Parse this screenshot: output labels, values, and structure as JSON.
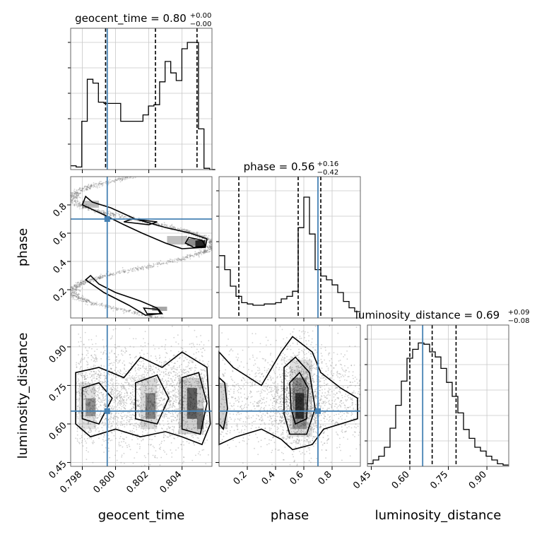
{
  "truth_color": "#4682b4",
  "chart_data": {
    "type": "corner",
    "parameters": [
      "geocent_time",
      "phase",
      "luminosity_distance"
    ],
    "ranges": {
      "geocent_time": [
        0.7973,
        0.8058
      ],
      "phase": [
        0.0,
        1.0
      ],
      "luminosity_distance": [
        0.435,
        0.985
      ]
    },
    "truths": {
      "geocent_time": 0.7995,
      "phase": 0.7,
      "luminosity_distance": 0.65
    },
    "grid": true,
    "panels": [
      {
        "id": "hist-geocent_time",
        "type": "histogram",
        "param": "geocent_time",
        "title": {
          "name": "geocent_time",
          "value": "0.80",
          "plus": "+0.00",
          "minus": "−0.00"
        },
        "quantiles": [
          0.7994,
          0.8024,
          0.8049
        ],
        "bin_edges": [
          0.7973,
          0.79763,
          0.79797,
          0.7983,
          0.79864,
          0.79897,
          0.79931,
          0.79964,
          0.79997,
          0.80031,
          0.80064,
          0.80098,
          0.80131,
          0.80165,
          0.80198,
          0.80231,
          0.80265,
          0.80298,
          0.80332,
          0.80365,
          0.80399,
          0.80432,
          0.80465,
          0.80499,
          0.80532,
          0.80566,
          0.806
        ],
        "counts": [
          0.03,
          0.02,
          0.38,
          0.71,
          0.68,
          0.53,
          0.52,
          0.52,
          0.52,
          0.38,
          0.38,
          0.38,
          0.38,
          0.43,
          0.5,
          0.51,
          0.69,
          0.85,
          0.76,
          0.7,
          0.95,
          1.0,
          1.0,
          0.32,
          0.01,
          0.0
        ],
        "yticks": [
          0.0,
          0.2,
          0.4,
          0.6,
          0.8,
          1.0
        ]
      },
      {
        "id": "hist-phase",
        "type": "histogram",
        "param": "phase",
        "title": {
          "name": "phase",
          "value": "0.56",
          "plus": "+0.16",
          "minus": "−0.42"
        },
        "quantiles": [
          0.14,
          0.56,
          0.72
        ],
        "bin_edges": [
          0.0,
          0.04,
          0.08,
          0.12,
          0.16,
          0.2,
          0.24,
          0.28,
          0.32,
          0.36,
          0.4,
          0.44,
          0.48,
          0.52,
          0.56,
          0.6,
          0.64,
          0.68,
          0.72,
          0.76,
          0.8,
          0.84,
          0.88,
          0.92,
          0.96,
          1.0
        ],
        "counts": [
          0.49,
          0.38,
          0.25,
          0.17,
          0.12,
          0.11,
          0.1,
          0.1,
          0.11,
          0.11,
          0.12,
          0.15,
          0.17,
          0.21,
          0.71,
          0.95,
          0.66,
          0.38,
          0.33,
          0.3,
          0.26,
          0.2,
          0.13,
          0.08,
          0.05
        ],
        "yticks": [
          0.0,
          0.2,
          0.4,
          0.6,
          0.8,
          1.0
        ]
      },
      {
        "id": "hist-luminosity_distance",
        "type": "histogram",
        "param": "luminosity_distance",
        "title": {
          "name": "luminosity_distance",
          "value": "0.69",
          "plus": "+0.09",
          "minus": "−0.08"
        },
        "quantiles": [
          0.6,
          0.687,
          0.78
        ],
        "bin_edges": [
          0.435,
          0.457,
          0.479,
          0.501,
          0.523,
          0.545,
          0.567,
          0.589,
          0.611,
          0.633,
          0.655,
          0.677,
          0.699,
          0.721,
          0.743,
          0.765,
          0.787,
          0.809,
          0.831,
          0.853,
          0.875,
          0.897,
          0.919,
          0.941,
          0.963,
          0.985
        ],
        "counts": [
          0.02,
          0.05,
          0.08,
          0.15,
          0.3,
          0.48,
          0.67,
          0.85,
          0.92,
          0.97,
          0.96,
          0.9,
          0.86,
          0.77,
          0.66,
          0.55,
          0.42,
          0.29,
          0.22,
          0.15,
          0.12,
          0.08,
          0.05,
          0.02,
          0.01
        ],
        "yticks": [
          0.0,
          0.2,
          0.4,
          0.6,
          0.8,
          1.0
        ]
      },
      {
        "id": "contour-geocent_time-phase",
        "type": "2d-contour",
        "x": "geocent_time",
        "y": "phase"
      },
      {
        "id": "contour-geocent_time-luminosity_distance",
        "type": "2d-contour",
        "x": "geocent_time",
        "y": "luminosity_distance"
      },
      {
        "id": "contour-phase-luminosity_distance",
        "type": "2d-contour",
        "x": "phase",
        "y": "luminosity_distance"
      }
    ],
    "ticks": {
      "geocent_time": {
        "values": [
          0.798,
          0.8,
          0.802,
          0.804
        ],
        "labels": [
          "0.798",
          "0.800",
          "0.802",
          "0.804"
        ]
      },
      "phase_y": {
        "values": [
          0.2,
          0.4,
          0.6,
          0.8
        ],
        "labels": [
          "0.2",
          "0.4",
          "0.6",
          "0.8"
        ]
      },
      "phase_x": {
        "values": [
          0.2,
          0.4,
          0.6,
          0.8
        ],
        "labels": [
          "0.2",
          "0.4",
          "0.6",
          "0.8"
        ]
      },
      "luminosity_distance": {
        "values": [
          0.45,
          0.6,
          0.75,
          0.9
        ],
        "labels": [
          "0.45",
          "0.60",
          "0.75",
          "0.90"
        ]
      }
    },
    "axis_labels": {
      "geocent_time": "geocent_time",
      "phase": "phase",
      "luminosity_distance": "luminosity_distance"
    }
  }
}
